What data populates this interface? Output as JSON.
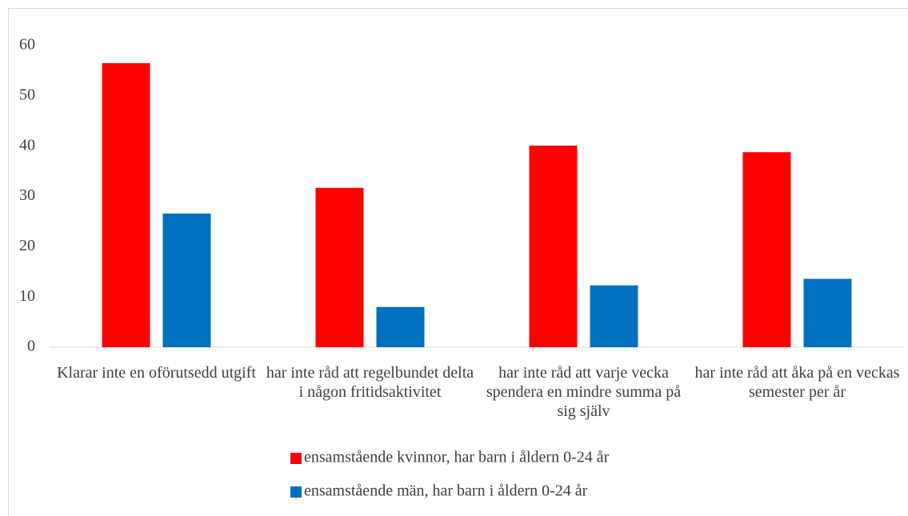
{
  "chart_data": {
    "type": "bar",
    "categories": [
      "Klarar inte en oförutsedd utgift",
      "har inte råd att regelbundet delta i någon fritidsaktivitet",
      "har inte råd att varje vecka spendera en mindre summa på sig själv",
      "har inte råd att åka på en veckas semester per år"
    ],
    "series": [
      {
        "name": "ensamstående kvinnor, har barn i åldern 0-24 år",
        "color": "#ff0000",
        "values": [
          56.5,
          31.7,
          40.1,
          38.8
        ]
      },
      {
        "name": "ensamstående män, har barn i åldern 0-24 år",
        "color": "#0070c0",
        "values": [
          26.6,
          8.0,
          12.3,
          13.6
        ]
      }
    ],
    "ylim": [
      0,
      60
    ],
    "yticks": [
      0,
      10,
      20,
      30,
      40,
      50,
      60
    ],
    "grid": false,
    "legend": "bottom"
  }
}
